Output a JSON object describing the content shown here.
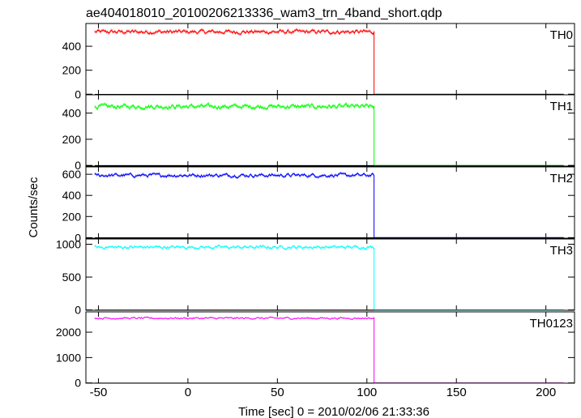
{
  "chart_data": {
    "type": "line",
    "title": "ae404018010_20100206213336_wam3_trn_4band_short.qdp",
    "xlabel": "Time [sec] 0 = 2010/02/06 21:33:36",
    "ylabel": "Counts/sec",
    "xlim": [
      -57,
      216
    ],
    "xticks": [
      -50,
      0,
      50,
      100,
      150,
      200
    ],
    "grid": false,
    "drop_time": 104,
    "panels": [
      {
        "name": "TH0",
        "color": "#ff0000",
        "level": 520,
        "noise": 18,
        "ylim": [
          -5,
          590
        ],
        "yticks": [
          0,
          200,
          400
        ]
      },
      {
        "name": "TH1",
        "color": "#00ff00",
        "level": 450,
        "noise": 18,
        "ylim": [
          -5,
          540
        ],
        "yticks": [
          0,
          200,
          400
        ]
      },
      {
        "name": "TH2",
        "color": "#0000ff",
        "level": 590,
        "noise": 18,
        "ylim": [
          -5,
          670
        ],
        "yticks": [
          0,
          200,
          400,
          600
        ]
      },
      {
        "name": "TH3",
        "color": "#00ffff",
        "level": 955,
        "noise": 25,
        "ylim": [
          -5,
          1080
        ],
        "yticks": [
          0,
          500,
          1000
        ]
      },
      {
        "name": "TH0123",
        "color": "#ff00ff",
        "level": 2550,
        "noise": 40,
        "ylim": [
          -10,
          2800
        ],
        "yticks": [
          0,
          1000,
          2000
        ]
      }
    ]
  }
}
